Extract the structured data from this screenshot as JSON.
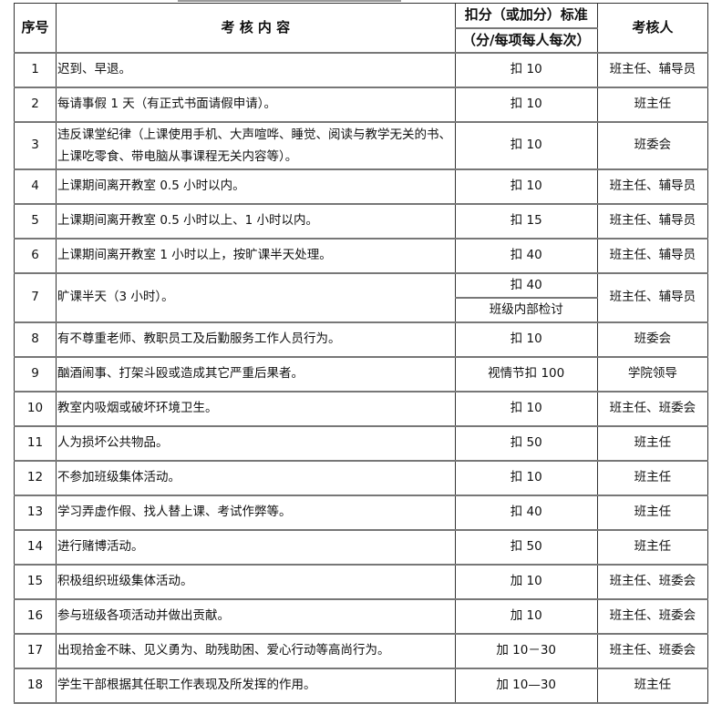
{
  "header": {
    "no": "序号",
    "content": "考 核 内 容",
    "standard_line1": "扣分（或加分）标准",
    "standard_line2": "（分/每项每人每次）",
    "assessor": "考核人"
  },
  "rows": [
    {
      "no": "1",
      "content": "迟到、早退。",
      "standard": "扣 10",
      "assessor": "班主任、辅导员"
    },
    {
      "no": "2",
      "content": "每请事假 1 天（有正式书面请假申请）。",
      "standard": "扣 10",
      "assessor": "班主任"
    },
    {
      "no": "3",
      "content": "违反课堂纪律（上课使用手机、大声喧哗、睡觉、阅读与教学无关的书、上课吃零食、带电脑从事课程无关内容等）。",
      "standard": "扣 10",
      "assessor": "班委会"
    },
    {
      "no": "4",
      "content": "上课期间离开教室 0.5 小时以内。",
      "standard": "扣 10",
      "assessor": "班主任、辅导员"
    },
    {
      "no": "5",
      "content": "上课期间离开教室 0.5 小时以上、1 小时以内。",
      "standard": "扣 15",
      "assessor": "班主任、辅导员"
    },
    {
      "no": "6",
      "content": "上课期间离开教室 1 小时以上，按旷课半天处理。",
      "standard": "扣 40",
      "assessor": "班主任、辅导员"
    },
    {
      "no": "7",
      "content": "旷课半天（3 小时）。",
      "standard": "扣 40",
      "standard2": "班级内部检讨",
      "assessor": "班主任、辅导员"
    },
    {
      "no": "8",
      "content": "有不尊重老师、教职员工及后勤服务工作人员行为。",
      "standard": "扣 10",
      "assessor": "班委会"
    },
    {
      "no": "9",
      "content": "酗酒闹事、打架斗殴或造成其它严重后果者。",
      "standard": "视情节扣 100",
      "assessor": "学院领导"
    },
    {
      "no": "10",
      "content": "教室内吸烟或破坏环境卫生。",
      "standard": "扣 10",
      "assessor": "班主任、班委会"
    },
    {
      "no": "11",
      "content": "人为损坏公共物品。",
      "standard": "扣 50",
      "assessor": "班主任"
    },
    {
      "no": "12",
      "content": "不参加班级集体活动。",
      "standard": "扣 10",
      "assessor": "班主任"
    },
    {
      "no": "13",
      "content": "学习弄虚作假、找人替上课、考试作弊等。",
      "standard": "扣 40",
      "assessor": "班主任"
    },
    {
      "no": "14",
      "content": "进行赌博活动。",
      "standard": "扣 50",
      "assessor": "班主任"
    },
    {
      "no": "15",
      "content": "积极组织班级集体活动。",
      "standard": "加 10",
      "assessor": "班主任、班委会"
    },
    {
      "no": "16",
      "content": "参与班级各项活动并做出贡献。",
      "standard": "加 10",
      "assessor": "班主任、班委会"
    },
    {
      "no": "17",
      "content": "出现拾金不昧、见义勇为、助残助困、爱心行动等高尚行为。",
      "standard": "加 10－30",
      "assessor": "班主任、班委会"
    },
    {
      "no": "18",
      "content": "学生干部根据其任职工作表现及所发挥的作用。",
      "standard": "加 10—30",
      "assessor": "班主任"
    }
  ]
}
